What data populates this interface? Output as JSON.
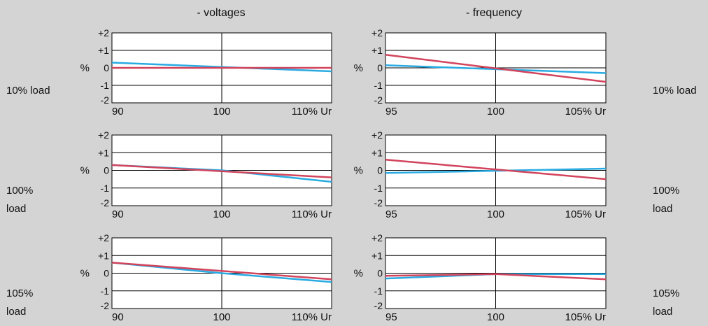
{
  "colors": {
    "background": "#d4d4d4",
    "panel": "#ffffff",
    "grid": "#000000",
    "series_blue": "#29abe2",
    "series_red": "#d2445c"
  },
  "column_titles": [
    "- voltages",
    "- frequency"
  ],
  "row_labels": [
    {
      "lines": [
        "10% load"
      ]
    },
    {
      "lines": [
        "100%",
        "load"
      ]
    },
    {
      "lines": [
        "105%",
        "load"
      ]
    }
  ],
  "y_unit": "%",
  "chart_data": [
    {
      "type": "line",
      "row": 0,
      "col": 0,
      "xlim": [
        90,
        110
      ],
      "ylim": [
        -2,
        2
      ],
      "x_ticks": [
        "90",
        "100",
        "110% Ur"
      ],
      "y_ticks": [
        "+2",
        "+1",
        "0",
        "-1",
        "-2"
      ],
      "series": [
        {
          "color": "#29abe2",
          "x": [
            90,
            110
          ],
          "y": [
            0.3,
            -0.2
          ]
        },
        {
          "color": "#d2445c",
          "x": [
            90,
            110
          ],
          "y": [
            0.0,
            0.0
          ]
        }
      ]
    },
    {
      "type": "line",
      "row": 0,
      "col": 1,
      "xlim": [
        95,
        105
      ],
      "ylim": [
        -2,
        2
      ],
      "x_ticks": [
        "95",
        "100",
        "105% Ur"
      ],
      "y_ticks": [
        "+2",
        "+1",
        "0",
        "-1",
        "-2"
      ],
      "series": [
        {
          "color": "#29abe2",
          "x": [
            95,
            105
          ],
          "y": [
            0.15,
            -0.3
          ]
        },
        {
          "color": "#d2445c",
          "x": [
            95,
            105
          ],
          "y": [
            0.75,
            -0.8
          ]
        }
      ]
    },
    {
      "type": "line",
      "row": 1,
      "col": 0,
      "xlim": [
        90,
        110
      ],
      "ylim": [
        -2,
        2
      ],
      "x_ticks": [
        "90",
        "100",
        "110% Ur"
      ],
      "y_ticks": [
        "+2",
        "+1",
        "0",
        "-1",
        "-2"
      ],
      "series": [
        {
          "color": "#29abe2",
          "x": [
            90,
            100,
            110
          ],
          "y": [
            0.3,
            0.0,
            -0.65
          ]
        },
        {
          "color": "#d2445c",
          "x": [
            90,
            110
          ],
          "y": [
            0.3,
            -0.4
          ]
        }
      ]
    },
    {
      "type": "line",
      "row": 1,
      "col": 1,
      "xlim": [
        95,
        105
      ],
      "ylim": [
        -2,
        2
      ],
      "x_ticks": [
        "95",
        "100",
        "105% Ur"
      ],
      "y_ticks": [
        "+2",
        "+1",
        "0",
        "-1",
        "-2"
      ],
      "series": [
        {
          "color": "#29abe2",
          "x": [
            95,
            105
          ],
          "y": [
            -0.15,
            0.1
          ]
        },
        {
          "color": "#d2445c",
          "x": [
            95,
            105
          ],
          "y": [
            0.6,
            -0.5
          ]
        }
      ]
    },
    {
      "type": "line",
      "row": 2,
      "col": 0,
      "xlim": [
        90,
        110
      ],
      "ylim": [
        -2,
        2
      ],
      "x_ticks": [
        "90",
        "100",
        "110% Ur"
      ],
      "y_ticks": [
        "+2",
        "+1",
        "0",
        "-1",
        "-2"
      ],
      "series": [
        {
          "color": "#29abe2",
          "x": [
            90,
            100,
            110
          ],
          "y": [
            0.6,
            0.0,
            -0.5
          ]
        },
        {
          "color": "#d2445c",
          "x": [
            90,
            110
          ],
          "y": [
            0.6,
            -0.35
          ]
        }
      ]
    },
    {
      "type": "line",
      "row": 2,
      "col": 1,
      "xlim": [
        95,
        105
      ],
      "ylim": [
        -2,
        2
      ],
      "x_ticks": [
        "95",
        "100",
        "105% Ur"
      ],
      "y_ticks": [
        "+2",
        "+1",
        "0",
        "-1",
        "-2"
      ],
      "series": [
        {
          "color": "#29abe2",
          "x": [
            95,
            100,
            105
          ],
          "y": [
            -0.3,
            -0.05,
            -0.05
          ]
        },
        {
          "color": "#d2445c",
          "x": [
            95,
            100,
            105
          ],
          "y": [
            -0.15,
            -0.05,
            -0.35
          ]
        }
      ]
    }
  ]
}
